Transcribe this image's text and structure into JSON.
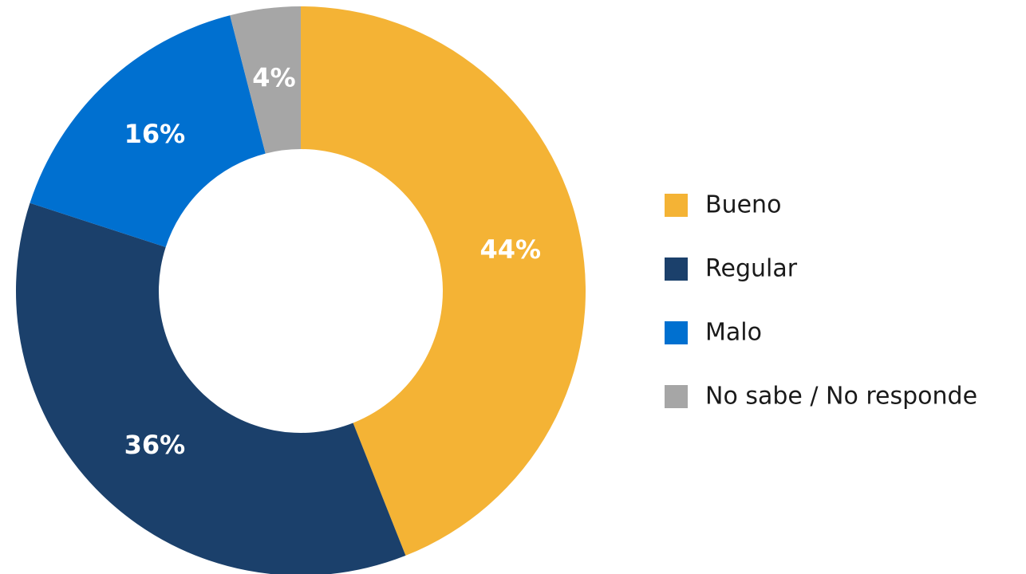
{
  "chart_data": {
    "type": "donut",
    "categories": [
      "Bueno",
      "Regular",
      "Malo",
      "No sabe / No responde"
    ],
    "values": [
      44,
      36,
      16,
      4
    ],
    "value_labels": [
      "44%",
      "36%",
      "16%",
      "4%"
    ],
    "colors": [
      "#F4B335",
      "#1B406B",
      "#0070D0",
      "#A6A6A6"
    ],
    "legend": "right"
  }
}
